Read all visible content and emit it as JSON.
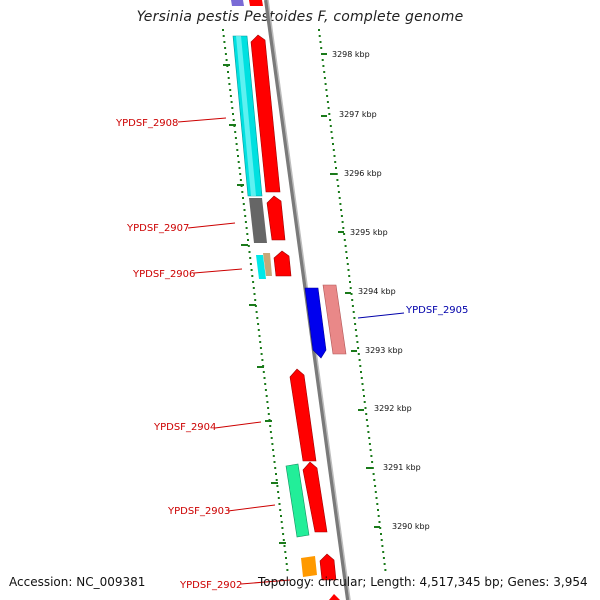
{
  "header": {
    "title": "Yersinia pestis Pestoides F, complete genome"
  },
  "footer": {
    "accession": "Accession: NC_009381",
    "topology": "Topology: circular; Length: 4,517,345 bp; Genes: 3,954"
  },
  "scale": {
    "unit": "kbp",
    "ticks": [
      "3298 kbp",
      "3297 kbp",
      "3296 kbp",
      "3295 kbp",
      "3294 kbp",
      "3293 kbp",
      "3292 kbp",
      "3291 kbp",
      "3290 kbp"
    ]
  },
  "genes": {
    "labels": [
      "YPDSF_2908",
      "YPDSF_2907",
      "YPDSF_2906",
      "YPDSF_2905",
      "YPDSF_2904",
      "YPDSF_2903",
      "YPDSF_2902"
    ]
  },
  "colors": {
    "forward_gene": "#ff0000",
    "reverse_gene": "#e98888",
    "blue_gene": "#0000ee",
    "label_forward": "#cc0000",
    "label_reverse": "#0000aa",
    "tick": "#1a7a1a",
    "backbone": "#808080"
  }
}
